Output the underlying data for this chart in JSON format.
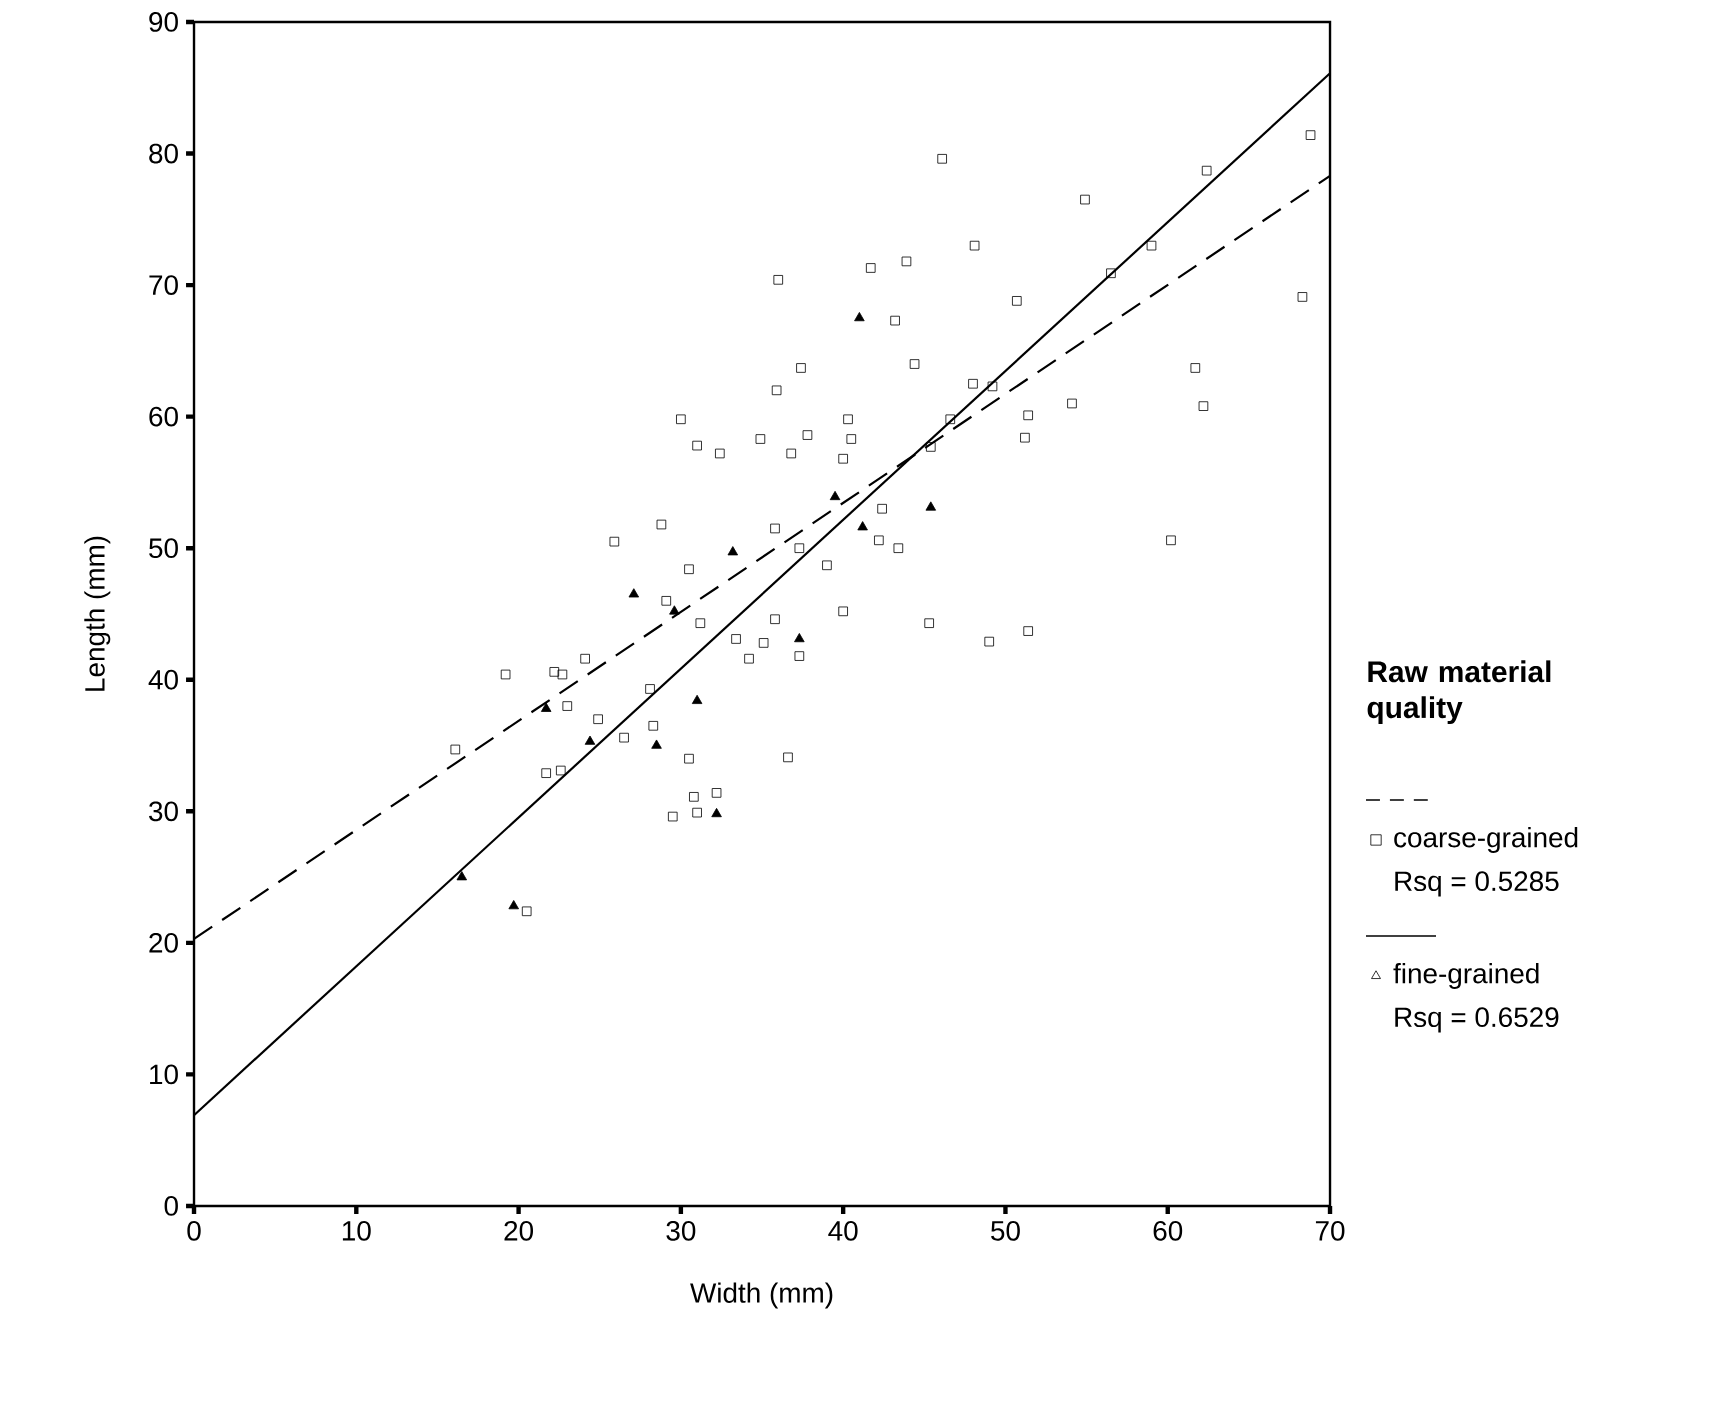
{
  "chart_data": {
    "type": "scatter",
    "xlabel": "Width (mm)",
    "ylabel": "Length (mm)",
    "legend_title": "Raw material quality",
    "legend": "right",
    "xlim": [
      0,
      70
    ],
    "ylim": [
      0,
      90
    ],
    "xticks": [
      0,
      10,
      20,
      30,
      40,
      50,
      60,
      70
    ],
    "yticks": [
      0,
      10,
      20,
      30,
      40,
      50,
      60,
      70,
      80,
      90
    ],
    "grid": false,
    "series": [
      {
        "name": "coarse-grained",
        "marker": "square",
        "color": "#000000",
        "x": [
          19.2,
          22.2,
          22.7,
          23.0,
          16.1,
          21.7,
          22.6,
          20.5,
          37.4,
          44.4,
          35.9,
          30.0,
          40.3,
          31.0,
          32.4,
          34.9,
          37.8,
          36.8,
          40.5,
          40.0,
          46.6,
          45.4,
          42.4,
          42.2,
          43.4,
          35.8,
          37.3,
          39.0,
          28.8,
          25.9,
          30.5,
          29.1,
          31.2,
          40.0,
          45.3,
          35.8,
          33.4,
          35.1,
          34.2,
          37.3,
          24.1,
          28.1,
          24.9,
          26.5,
          28.3,
          30.5,
          36.6,
          30.8,
          32.2,
          29.5,
          31.0,
          46.1,
          68.8,
          62.4,
          54.9,
          48.1,
          41.7,
          43.9,
          59.0,
          56.5,
          50.7,
          68.3,
          43.2,
          61.7,
          62.2,
          48.0,
          49.2,
          51.4,
          54.1,
          51.2,
          60.2,
          49.0,
          51.4,
          36.0
        ],
        "values": [
          40.4,
          40.6,
          40.4,
          38.0,
          34.7,
          32.9,
          33.1,
          22.4,
          63.7,
          64.0,
          62.0,
          59.8,
          59.8,
          57.8,
          57.2,
          58.3,
          58.6,
          57.2,
          58.3,
          56.8,
          59.8,
          57.7,
          53.0,
          50.6,
          50.0,
          51.5,
          50.0,
          48.7,
          51.8,
          50.5,
          48.4,
          46.0,
          44.3,
          45.2,
          44.3,
          44.6,
          43.1,
          42.8,
          41.6,
          41.8,
          41.6,
          39.3,
          37.0,
          35.6,
          36.5,
          34.0,
          34.1,
          31.1,
          31.4,
          29.6,
          29.9,
          79.6,
          81.4,
          78.7,
          76.5,
          73.0,
          71.3,
          71.8,
          73.0,
          70.9,
          68.8,
          69.1,
          67.3,
          63.7,
          60.8,
          62.5,
          62.3,
          60.1,
          61.0,
          58.4,
          50.6,
          42.9,
          43.7,
          70.4
        ]
      },
      {
        "name": "Rsq = 0.5285",
        "type": "line",
        "line_style": "dashed",
        "marker": "none",
        "color": "#000000",
        "x": [
          0,
          70
        ],
        "values": [
          20.3,
          78.3
        ]
      },
      {
        "name": "fine-grained",
        "marker": "triangle",
        "color": "#000000",
        "x": [
          21.7,
          16.5,
          19.7,
          39.5,
          45.4,
          41.2,
          33.2,
          27.1,
          29.6,
          37.3,
          31.0,
          24.4,
          28.5,
          32.2,
          41.0
        ],
        "values": [
          37.8,
          25.0,
          22.8,
          53.9,
          53.1,
          51.6,
          49.7,
          46.5,
          45.2,
          43.1,
          38.4,
          35.3,
          35.0,
          29.8,
          67.5
        ]
      },
      {
        "name": "Rsq = 0.6529",
        "type": "line",
        "line_style": "solid",
        "marker": "none",
        "color": "#000000",
        "x": [
          0,
          70
        ],
        "values": [
          6.9,
          86.1
        ]
      }
    ]
  }
}
